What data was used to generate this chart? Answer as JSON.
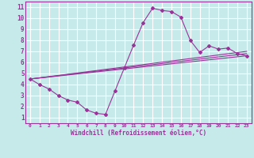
{
  "xlabel": "Windchill (Refroidissement éolien,°C)",
  "xlim": [
    -0.5,
    23.5
  ],
  "ylim": [
    0.5,
    11.5
  ],
  "xticks": [
    0,
    1,
    2,
    3,
    4,
    5,
    6,
    7,
    8,
    9,
    10,
    11,
    12,
    13,
    14,
    15,
    16,
    17,
    18,
    19,
    20,
    21,
    22,
    23
  ],
  "yticks": [
    1,
    2,
    3,
    4,
    5,
    6,
    7,
    8,
    9,
    10,
    11
  ],
  "bg_color": "#c6eaea",
  "grid_color": "#b0d8d8",
  "line_color": "#993399",
  "line1_x": [
    0,
    1,
    2,
    3,
    4,
    5,
    6,
    7,
    8,
    9,
    10,
    11,
    12,
    13,
    14,
    15,
    16,
    17,
    18,
    19,
    20,
    21,
    22,
    23
  ],
  "line1_y": [
    4.5,
    4.0,
    3.6,
    3.0,
    2.6,
    2.4,
    1.7,
    1.4,
    1.3,
    3.4,
    5.5,
    7.6,
    9.6,
    10.9,
    10.7,
    10.6,
    10.1,
    8.0,
    6.9,
    7.5,
    7.2,
    7.3,
    6.8,
    6.6
  ],
  "line2_x": [
    0,
    23
  ],
  "line2_y": [
    4.5,
    6.6
  ],
  "line3_x": [
    0,
    23
  ],
  "line3_y": [
    4.5,
    7.0
  ],
  "line4_x": [
    0,
    23
  ],
  "line4_y": [
    4.5,
    6.8
  ]
}
